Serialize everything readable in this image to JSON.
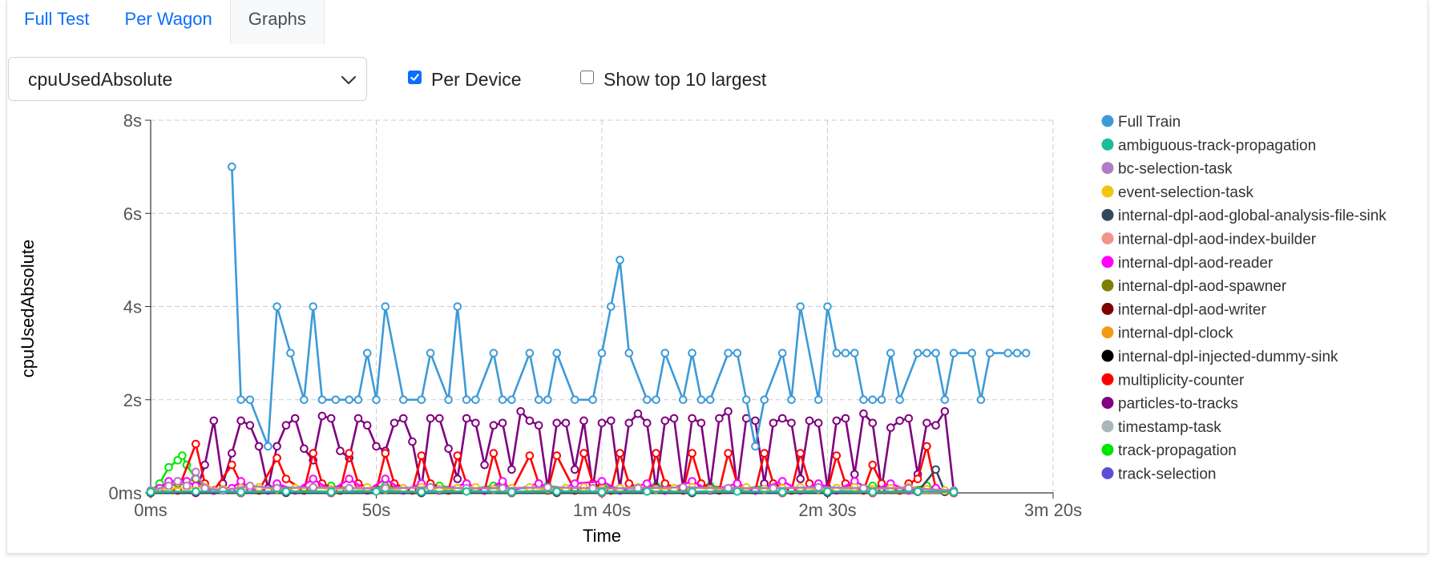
{
  "tabs": [
    {
      "label": "Full Test",
      "active": false
    },
    {
      "label": "Per Wagon",
      "active": false
    },
    {
      "label": "Graphs",
      "active": true
    }
  ],
  "metric_select": {
    "value": "cpuUsedAbsolute"
  },
  "options": {
    "per_device": {
      "label": "Per Device",
      "checked": true
    },
    "top10": {
      "label": "Show top 10 largest",
      "checked": false
    }
  },
  "colors": {
    "accent": "#0d6efd",
    "grid": "#cccccc"
  },
  "chart_data": {
    "type": "line",
    "xlabel": "Time",
    "ylabel": "cpuUsedAbsolute",
    "xlim": [
      0,
      200
    ],
    "ylim": [
      0,
      8
    ],
    "x_ticks": [
      {
        "value": 0,
        "label": "0ms"
      },
      {
        "value": 50,
        "label": "50s"
      },
      {
        "value": 100,
        "label": "1m 40s"
      },
      {
        "value": 150,
        "label": "2m 30s"
      },
      {
        "value": 200,
        "label": "3m 20s"
      }
    ],
    "y_ticks": [
      {
        "value": 0,
        "label": "0ms"
      },
      {
        "value": 2,
        "label": "2s"
      },
      {
        "value": 4,
        "label": "4s"
      },
      {
        "value": 6,
        "label": "6s"
      },
      {
        "value": 8,
        "label": "8s"
      }
    ],
    "grid": true,
    "legend": "right",
    "series": [
      {
        "name": "Full Train",
        "color": "#3d9ad9",
        "x": [
          18,
          20,
          22,
          26,
          28,
          31,
          34,
          36,
          38,
          41,
          44,
          46,
          48,
          50,
          52,
          56,
          60,
          62,
          66,
          68,
          70,
          72,
          76,
          78,
          80,
          84,
          86,
          88,
          90,
          94,
          98,
          100,
          102,
          104,
          106,
          110,
          112,
          114,
          118,
          120,
          122,
          124,
          128,
          130,
          132,
          134,
          136,
          140,
          142,
          144,
          148,
          150,
          152,
          154,
          156,
          158,
          160,
          162,
          164,
          166,
          170,
          172,
          174,
          176,
          178,
          182,
          184,
          186,
          190,
          192,
          194
        ],
        "y": [
          7,
          2,
          2,
          1,
          4,
          3,
          2,
          4,
          2,
          2,
          2,
          2,
          3,
          2,
          4,
          2,
          2,
          3,
          2,
          4,
          2,
          2,
          3,
          2,
          2,
          3,
          2,
          2,
          3,
          2,
          2,
          3,
          4,
          5,
          3,
          2,
          2,
          3,
          2,
          3,
          2,
          2,
          3,
          3,
          2,
          1,
          2,
          3,
          2,
          4,
          2,
          4,
          3,
          3,
          3,
          2,
          2,
          2,
          3,
          2,
          3,
          3,
          3,
          2,
          3,
          3,
          2,
          3,
          3,
          3,
          3
        ]
      },
      {
        "name": "ambiguous-track-propagation",
        "color": "#1abc9c",
        "x": [
          0,
          10,
          20,
          30,
          40,
          50,
          60,
          70,
          80,
          90,
          100,
          110,
          120,
          130,
          140,
          150,
          160,
          170,
          178
        ],
        "y": [
          0.02,
          0.03,
          0.02,
          0.03,
          0.02,
          0.03,
          0.02,
          0.03,
          0.02,
          0.03,
          0.02,
          0.03,
          0.02,
          0.03,
          0.02,
          0.03,
          0.02,
          0.03,
          0.02
        ]
      },
      {
        "name": "bc-selection-task",
        "color": "#b07cc6",
        "x": [
          0,
          4,
          6,
          8,
          10,
          12,
          16,
          22,
          28,
          36,
          44,
          52,
          62,
          70,
          78,
          88,
          98,
          108,
          118,
          128,
          138,
          148,
          158,
          168,
          178
        ],
        "y": [
          0.05,
          0.15,
          0.25,
          0.15,
          0.45,
          0.1,
          0.05,
          0.15,
          0.1,
          0.12,
          0.1,
          0.1,
          0.12,
          0.1,
          0.1,
          0.12,
          0.1,
          0.1,
          0.12,
          0.1,
          0.1,
          0.12,
          0.1,
          0.1,
          0.05
        ]
      },
      {
        "name": "event-selection-task",
        "color": "#f1c40f",
        "x": [
          0,
          4,
          8,
          12,
          16,
          20,
          24,
          28,
          32,
          36,
          40,
          44,
          48,
          52,
          56,
          60,
          64,
          68,
          72,
          76,
          80,
          84,
          88,
          92,
          96,
          100,
          104,
          108,
          112,
          116,
          120,
          124,
          128,
          132,
          136,
          140,
          144,
          148,
          152,
          156,
          160,
          164,
          168,
          172,
          176
        ],
        "y": [
          0.05,
          0.1,
          0.1,
          0.12,
          0.08,
          0.1,
          0.12,
          0.08,
          0.1,
          0.12,
          0.08,
          0.1,
          0.12,
          0.08,
          0.1,
          0.12,
          0.08,
          0.1,
          0.12,
          0.08,
          0.1,
          0.12,
          0.08,
          0.1,
          0.12,
          0.08,
          0.1,
          0.12,
          0.08,
          0.1,
          0.12,
          0.08,
          0.1,
          0.12,
          0.08,
          0.1,
          0.12,
          0.08,
          0.1,
          0.12,
          0.08,
          0.1,
          0.12,
          0.08,
          0.05
        ]
      },
      {
        "name": "internal-dpl-aod-global-analysis-file-sink",
        "color": "#34495e",
        "x": [
          0,
          30,
          60,
          90,
          120,
          150,
          170,
          174,
          176
        ],
        "y": [
          0,
          0,
          0,
          0,
          0,
          0,
          0.02,
          0.5,
          0.02
        ]
      },
      {
        "name": "internal-dpl-aod-index-builder",
        "color": "#f1948a",
        "x": [
          0,
          20,
          40,
          60,
          80,
          100,
          120,
          140,
          160,
          178
        ],
        "y": [
          0.01,
          0.01,
          0.01,
          0.01,
          0.01,
          0.01,
          0.01,
          0.01,
          0.01,
          0.01
        ]
      },
      {
        "name": "internal-dpl-aod-reader",
        "color": "#ff00ff",
        "x": [
          2,
          4,
          6,
          8,
          10,
          12,
          14,
          18,
          20,
          22,
          26,
          28,
          32,
          36,
          40,
          44,
          48,
          52,
          56,
          60,
          64,
          70,
          74,
          78,
          80,
          86,
          90,
          94,
          100,
          104,
          110,
          114,
          120,
          124,
          130,
          134,
          140,
          144,
          148,
          152,
          156,
          160,
          164,
          168,
          174,
          178
        ],
        "y": [
          0.1,
          0.25,
          0.25,
          0.25,
          0.15,
          0.1,
          0.05,
          0.1,
          0.25,
          0.1,
          0.05,
          0.2,
          0.05,
          0.3,
          0.05,
          0.3,
          0.05,
          0.3,
          0.05,
          0.2,
          0.05,
          0.2,
          0.05,
          0.25,
          0.05,
          0.2,
          0.05,
          0.2,
          0.25,
          0.05,
          0.2,
          0.05,
          0.25,
          0.05,
          0.2,
          0.05,
          0.25,
          0.05,
          0.2,
          0.05,
          0.25,
          0.05,
          0.2,
          0.05,
          0.1,
          0.05
        ]
      },
      {
        "name": "internal-dpl-aod-spawner",
        "color": "#808000",
        "x": [
          0,
          6,
          10,
          14,
          20,
          30,
          40,
          50,
          60,
          70,
          80,
          90,
          100,
          110,
          120,
          130,
          140,
          150,
          160,
          170,
          178
        ],
        "y": [
          0.02,
          0.2,
          0.3,
          0.05,
          0.02,
          0.05,
          0.02,
          0.05,
          0.02,
          0.05,
          0.02,
          0.05,
          0.02,
          0.05,
          0.02,
          0.05,
          0.02,
          0.05,
          0.02,
          0.05,
          0.02
        ]
      },
      {
        "name": "internal-dpl-aod-writer",
        "color": "#800000",
        "x": [
          0,
          20,
          40,
          60,
          80,
          100,
          120,
          140,
          160,
          178
        ],
        "y": [
          0,
          0,
          0,
          0,
          0,
          0,
          0,
          0,
          0,
          0
        ]
      },
      {
        "name": "internal-dpl-clock",
        "color": "#f39c12",
        "x": [
          0,
          20,
          40,
          60,
          80,
          100,
          120,
          140,
          160,
          178
        ],
        "y": [
          0,
          0,
          0,
          0,
          0,
          0,
          0,
          0,
          0,
          0
        ]
      },
      {
        "name": "internal-dpl-injected-dummy-sink",
        "color": "#000000",
        "x": [
          0,
          20,
          40,
          60,
          80,
          100,
          120,
          140,
          160,
          178
        ],
        "y": [
          0,
          0,
          0,
          0,
          0,
          0,
          0,
          0,
          0,
          0
        ]
      },
      {
        "name": "multiplicity-counter",
        "color": "#ff0000",
        "x": [
          0,
          6,
          10,
          12,
          14,
          18,
          20,
          24,
          28,
          30,
          34,
          36,
          38,
          42,
          44,
          46,
          50,
          52,
          54,
          58,
          60,
          62,
          66,
          68,
          70,
          74,
          76,
          78,
          80,
          84,
          86,
          88,
          90,
          94,
          96,
          98,
          102,
          104,
          106,
          110,
          112,
          114,
          118,
          120,
          122,
          126,
          128,
          130,
          134,
          136,
          138,
          142,
          144,
          146,
          150,
          152,
          154,
          158,
          160,
          162,
          166,
          168,
          170,
          172,
          174,
          176
        ],
        "y": [
          0,
          0.05,
          1.05,
          0.2,
          0.05,
          0.6,
          0.2,
          0.05,
          0.75,
          0.3,
          0.05,
          0.85,
          0.2,
          0.05,
          0.85,
          0.2,
          0.05,
          0.85,
          0.2,
          0.05,
          0.8,
          0.2,
          0.05,
          0.8,
          0.2,
          0.05,
          0.85,
          0.2,
          0.05,
          0.8,
          0.2,
          0.05,
          0.8,
          0.05,
          0.85,
          0.2,
          0.05,
          0.85,
          0.2,
          0.05,
          0.85,
          0.2,
          0.05,
          0.85,
          0.2,
          0.05,
          0.85,
          0.2,
          0.05,
          0.85,
          0.2,
          0.05,
          0.85,
          0.2,
          0.05,
          0.8,
          0.2,
          0.05,
          0.6,
          0.2,
          0.05,
          0.2,
          0.3,
          1.0,
          0.1,
          0.02
        ]
      },
      {
        "name": "particles-to-tracks",
        "color": "#800080",
        "x": [
          0,
          10,
          12,
          14,
          16,
          18,
          20,
          22,
          24,
          26,
          28,
          30,
          32,
          34,
          36,
          38,
          40,
          42,
          44,
          46,
          48,
          50,
          52,
          54,
          56,
          58,
          60,
          62,
          64,
          66,
          68,
          70,
          72,
          74,
          76,
          78,
          80,
          82,
          84,
          86,
          88,
          90,
          92,
          94,
          96,
          98,
          100,
          102,
          104,
          106,
          108,
          110,
          112,
          114,
          116,
          118,
          120,
          122,
          124,
          126,
          128,
          130,
          132,
          134,
          136,
          138,
          140,
          142,
          144,
          146,
          148,
          150,
          152,
          154,
          156,
          158,
          160,
          162,
          164,
          166,
          168,
          170,
          172,
          174,
          176,
          178
        ],
        "y": [
          0,
          0,
          0.6,
          1.55,
          0.2,
          0.85,
          1.55,
          1.45,
          1.0,
          0.1,
          1.0,
          1.45,
          1.6,
          0.95,
          0.7,
          1.65,
          1.6,
          0.9,
          0.75,
          1.6,
          1.45,
          1.0,
          0.9,
          1.5,
          1.6,
          1.1,
          0.1,
          1.6,
          1.6,
          0.95,
          0.3,
          1.6,
          1.5,
          0.6,
          1.45,
          1.5,
          0.5,
          1.75,
          1.55,
          1.45,
          0.1,
          1.5,
          1.5,
          0.5,
          1.55,
          0.1,
          1.5,
          1.55,
          0.1,
          1.5,
          1.7,
          1.5,
          0.1,
          1.55,
          1.6,
          0.1,
          1.6,
          1.5,
          0.1,
          1.6,
          1.75,
          0.1,
          1.6,
          1.55,
          0.2,
          1.5,
          1.6,
          1.5,
          0.3,
          1.55,
          1.5,
          0.1,
          1.55,
          1.6,
          0.4,
          1.7,
          1.5,
          0.1,
          1.4,
          1.55,
          1.6,
          0.4,
          1.5,
          1.45,
          1.75,
          0.02
        ]
      },
      {
        "name": "timestamp-task",
        "color": "#aab7b8",
        "x": [
          0,
          20,
          40,
          60,
          80,
          100,
          120,
          140,
          160,
          178
        ],
        "y": [
          0.03,
          0.03,
          0.03,
          0.03,
          0.03,
          0.03,
          0.03,
          0.03,
          0.03,
          0.03
        ]
      },
      {
        "name": "track-propagation",
        "color": "#00e600",
        "x": [
          0,
          2,
          4,
          6,
          7,
          8,
          10,
          12,
          14,
          16,
          20,
          24,
          28,
          32,
          36,
          40,
          44,
          48,
          52,
          56,
          60,
          64,
          68,
          72,
          76,
          80,
          84,
          88,
          92,
          96,
          100,
          104,
          108,
          112,
          116,
          120,
          124,
          128,
          132,
          136,
          140,
          144,
          148,
          152,
          156,
          160,
          164,
          168,
          172,
          176
        ],
        "y": [
          0.05,
          0.2,
          0.55,
          0.7,
          0.8,
          0.6,
          0.3,
          0.1,
          0.05,
          0.1,
          0.1,
          0.1,
          0.15,
          0.1,
          0.1,
          0.15,
          0.1,
          0.1,
          0.15,
          0.1,
          0.1,
          0.15,
          0.1,
          0.1,
          0.15,
          0.1,
          0.1,
          0.15,
          0.1,
          0.1,
          0.15,
          0.1,
          0.1,
          0.15,
          0.1,
          0.1,
          0.15,
          0.1,
          0.1,
          0.15,
          0.1,
          0.1,
          0.15,
          0.1,
          0.1,
          0.15,
          0.1,
          0.1,
          0.15,
          0.05
        ]
      },
      {
        "name": "track-selection",
        "color": "#5b4fd6",
        "x": [
          0,
          20,
          40,
          60,
          80,
          100,
          120,
          140,
          160,
          178
        ],
        "y": [
          0,
          0,
          0,
          0,
          0,
          0,
          0,
          0,
          0,
          0
        ]
      }
    ]
  }
}
